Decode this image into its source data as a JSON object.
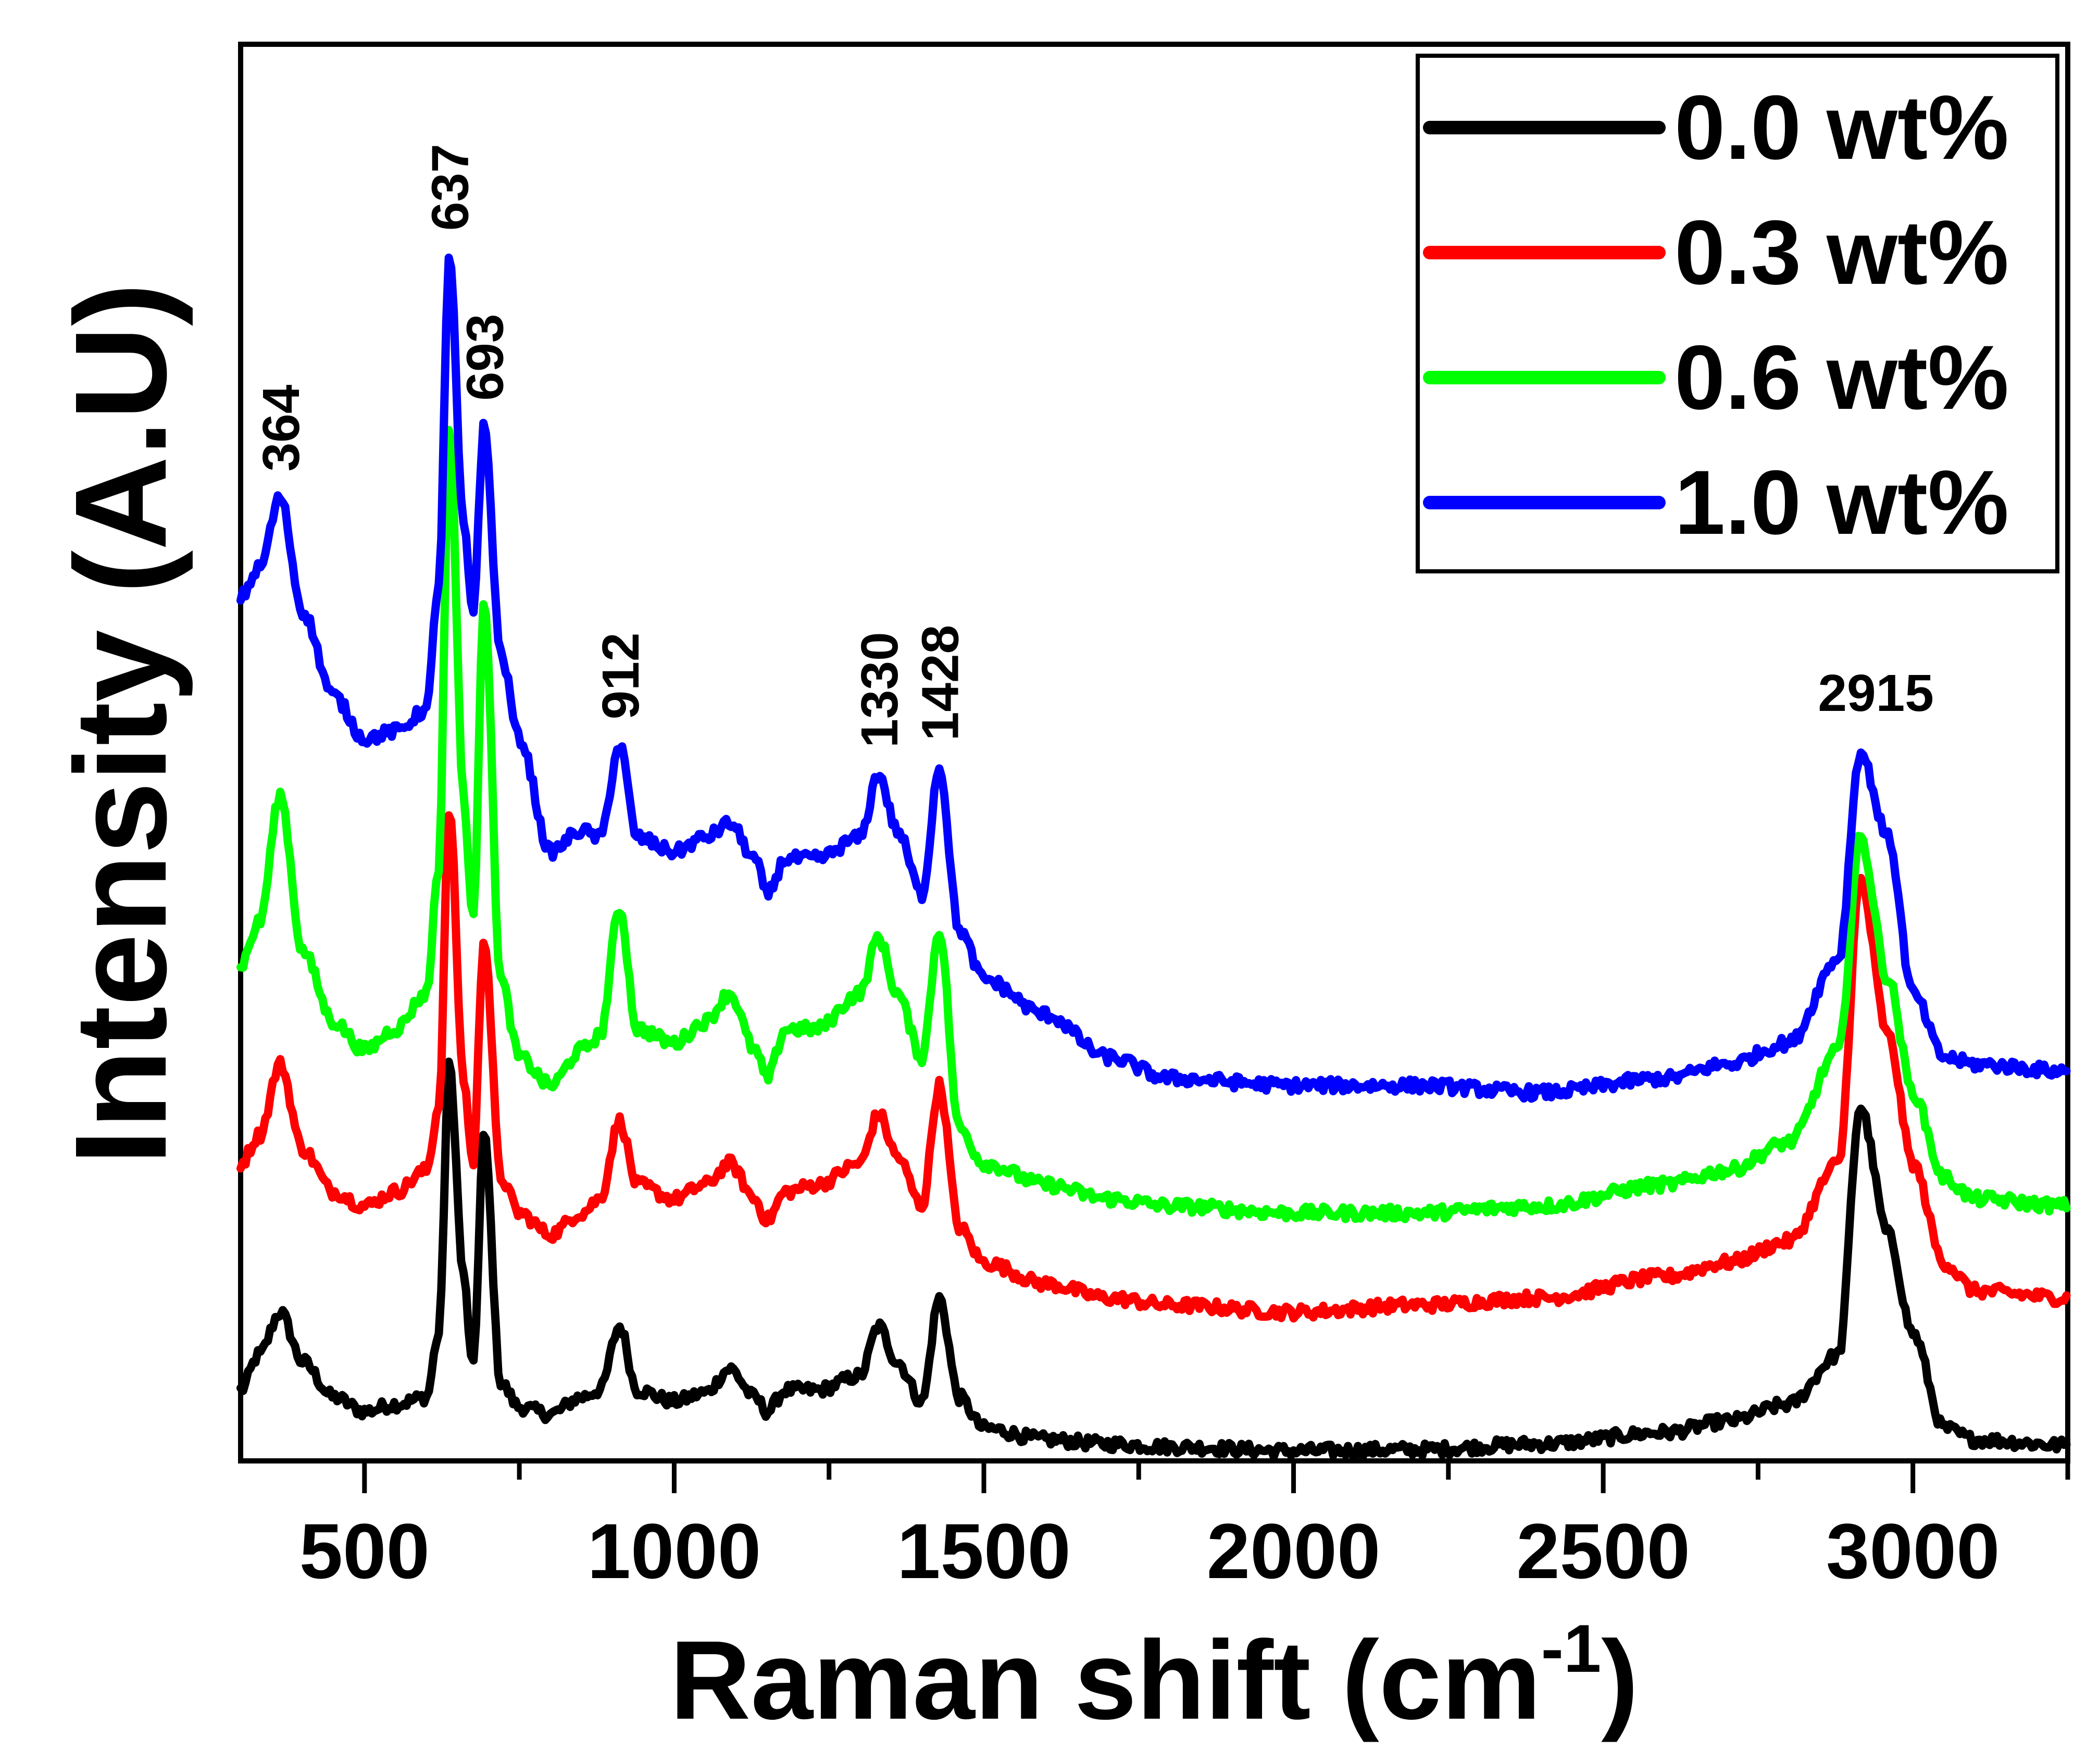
{
  "chart_data": {
    "type": "line",
    "title": "",
    "xlabel": "Raman shift (cm",
    "xlabel_superscript": "-1",
    "xlabel_suffix": ")",
    "ylabel": "Intensity (A.U)",
    "xlim": [
      300,
      3250
    ],
    "ylim": [
      0,
      100
    ],
    "xticks": [
      500,
      1000,
      1500,
      2000,
      2500,
      3000
    ],
    "legend_position": "top-right",
    "peak_annotations": [
      "364",
      "637",
      "693",
      "912",
      "1330",
      "1428",
      "2915"
    ],
    "peak_positions": [
      364,
      637,
      693,
      912,
      1330,
      1428,
      2915
    ],
    "series": [
      {
        "name": "0.0 wt%",
        "color": "#000000",
        "x": [
          300,
          330,
          364,
          400,
          450,
          500,
          550,
          600,
          620,
          637,
          660,
          675,
          693,
          720,
          750,
          800,
          850,
          880,
          912,
          940,
          1000,
          1050,
          1090,
          1130,
          1150,
          1180,
          1230,
          1300,
          1330,
          1360,
          1400,
          1428,
          1460,
          1500,
          1600,
          1700,
          1800,
          2000,
          2200,
          2400,
          2600,
          2700,
          2800,
          2880,
          2915,
          2960,
          3000,
          3050,
          3100,
          3250
        ],
        "values": [
          5,
          7.5,
          10.5,
          7,
          4.5,
          3.5,
          4,
          4.5,
          9,
          28,
          13,
          6.5,
          23,
          5.5,
          3.8,
          3.3,
          4.5,
          5,
          9.5,
          5,
          4.2,
          4.8,
          6.5,
          4.5,
          3.5,
          5,
          5,
          6,
          9.5,
          7,
          4.2,
          11.5,
          4.5,
          2.3,
          1.5,
          1.2,
          1,
          0.7,
          0.8,
          1.2,
          2,
          2.8,
          4,
          7.5,
          25,
          16,
          9,
          2.3,
          1.5,
          1.1
        ]
      },
      {
        "name": "0.3 wt%",
        "color": "#ff0000",
        "x": [
          300,
          330,
          364,
          400,
          450,
          500,
          550,
          600,
          620,
          637,
          660,
          675,
          693,
          720,
          750,
          800,
          850,
          880,
          912,
          940,
          1000,
          1050,
          1090,
          1130,
          1150,
          1180,
          1230,
          1300,
          1330,
          1360,
          1400,
          1428,
          1460,
          1500,
          1600,
          1700,
          1800,
          2000,
          2200,
          2400,
          2600,
          2700,
          2800,
          2880,
          2915,
          2960,
          3000,
          3050,
          3100,
          3250
        ],
        "values": [
          21,
          23,
          28,
          22,
          19,
          18,
          19,
          20.5,
          25,
          46,
          27,
          21,
          37,
          20,
          17.5,
          16,
          17.5,
          18.5,
          24,
          19.5,
          18.5,
          19.5,
          21,
          18.5,
          17,
          19,
          19.5,
          21,
          24.5,
          21.5,
          18,
          26.5,
          16.5,
          14,
          12.5,
          11.5,
          11,
          10.5,
          11,
          11.5,
          13,
          14,
          15.5,
          21,
          41,
          30,
          21,
          14,
          12,
          11.5
        ]
      },
      {
        "name": "0.6 wt%",
        "color": "#00ff00",
        "x": [
          300,
          330,
          364,
          400,
          450,
          500,
          550,
          600,
          620,
          637,
          660,
          675,
          693,
          720,
          750,
          800,
          850,
          880,
          912,
          940,
          1000,
          1050,
          1090,
          1130,
          1150,
          1180,
          1230,
          1300,
          1330,
          1360,
          1400,
          1428,
          1460,
          1500,
          1600,
          1700,
          1800,
          2000,
          2200,
          2400,
          2600,
          2700,
          2800,
          2880,
          2915,
          2960,
          3000,
          3050,
          3100,
          3250
        ],
        "values": [
          35,
          38,
          47,
          36,
          31,
          29,
          30.5,
          33,
          42,
          73,
          47,
          38,
          61,
          34,
          28.5,
          26.5,
          29,
          30,
          39,
          30.5,
          29.5,
          31,
          33,
          29,
          27,
          30.5,
          30.5,
          33,
          37,
          33,
          28.5,
          37.5,
          23.5,
          21,
          19.5,
          18.5,
          18,
          17.5,
          17.5,
          18,
          19.5,
          20.5,
          22.5,
          29,
          44,
          34,
          26,
          20,
          18.5,
          18
        ]
      },
      {
        "name": "1.0 wt%",
        "color": "#0000ff",
        "x": [
          300,
          330,
          364,
          400,
          450,
          500,
          550,
          600,
          620,
          637,
          660,
          675,
          693,
          720,
          750,
          800,
          850,
          880,
          912,
          940,
          1000,
          1050,
          1090,
          1130,
          1150,
          1180,
          1230,
          1300,
          1330,
          1360,
          1400,
          1428,
          1460,
          1500,
          1600,
          1700,
          1800,
          2000,
          2200,
          2400,
          2600,
          2700,
          2800,
          2880,
          2915,
          2960,
          3000,
          3050,
          3100,
          3250
        ],
        "values": [
          61,
          63,
          68,
          60,
          54,
          51,
          51.5,
          53,
          62,
          85,
          66,
          60,
          73,
          57,
          51,
          43,
          44.5,
          44,
          50.5,
          44,
          43,
          44,
          45,
          42.5,
          40,
          42.5,
          42.5,
          44,
          48.5,
          44.5,
          40,
          49,
          37.5,
          34,
          31.5,
          28.5,
          27,
          26.5,
          26.5,
          26,
          27,
          28,
          29.5,
          35.5,
          50,
          44,
          33,
          28.5,
          28,
          27.5
        ]
      }
    ]
  }
}
